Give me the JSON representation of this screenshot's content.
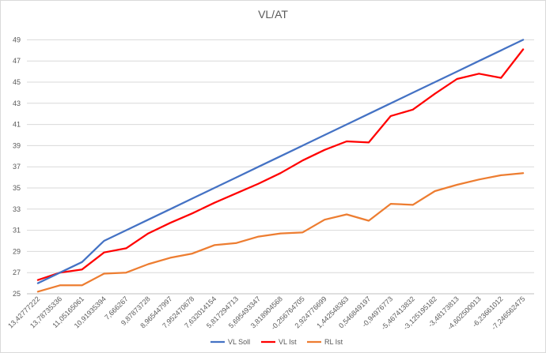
{
  "chart_data": {
    "type": "line",
    "title": "VL/AT",
    "xlabel": "",
    "ylabel": "",
    "ylim": [
      25,
      50
    ],
    "yticks": [
      25,
      27,
      29,
      31,
      33,
      35,
      37,
      39,
      41,
      43,
      45,
      47,
      49
    ],
    "grid": true,
    "legend_position": "bottom",
    "categories": [
      "13,42777222",
      "13,78735336",
      "11,05165061",
      "10,91935394",
      "7,666267",
      "9,87873728",
      "8,965447997",
      "7,952470678",
      "7,632014154",
      "5,817294713",
      "5,695493347",
      "3,818904568",
      "-0,256764705",
      "2,924776699",
      "1,442548363",
      "0,546849197",
      "-0,94976773",
      "-5,467413832",
      "-3,125195182",
      "-3,48173813",
      "-4,602500013",
      "-6,23661012",
      "-7,246562475"
    ],
    "series": [
      {
        "name": "VL Soll",
        "color": "#4472c4",
        "values": [
          26,
          27,
          28,
          30,
          31,
          32,
          33,
          34,
          35,
          36,
          37,
          38,
          39,
          40,
          41,
          42,
          43,
          44,
          45,
          46,
          47,
          48,
          49
        ]
      },
      {
        "name": "VL Ist",
        "color": "#ff0000",
        "values": [
          26.3,
          27,
          27.3,
          28.9,
          29.3,
          30.7,
          31.7,
          32.6,
          33.6,
          34.5,
          35.4,
          36.4,
          37.6,
          38.6,
          39.4,
          39.3,
          41.8,
          42.4,
          43.9,
          45.3,
          45.8,
          45.4,
          48.1
        ]
      },
      {
        "name": "RL Ist",
        "color": "#ed7d31",
        "values": [
          25.2,
          25.8,
          25.8,
          26.9,
          27,
          27.8,
          28.4,
          28.8,
          29.6,
          29.8,
          30.4,
          30.7,
          30.8,
          32,
          32.5,
          31.9,
          33.5,
          33.4,
          34.7,
          35.3,
          35.8,
          36.2,
          36.4
        ]
      }
    ]
  }
}
